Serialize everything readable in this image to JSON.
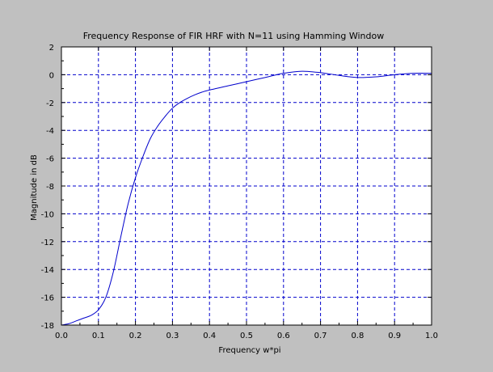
{
  "chart_data": {
    "type": "line",
    "title": "Frequency Response of FIR HRF with N=11 using Hamming Window",
    "xlabel": "Frequency w*pi",
    "ylabel": "Magnitude in dB",
    "xlim": [
      0.0,
      1.0
    ],
    "ylim": [
      -18,
      2
    ],
    "xticks": [
      0.0,
      0.1,
      0.2,
      0.3,
      0.4,
      0.5,
      0.6,
      0.7,
      0.8,
      0.9,
      1.0
    ],
    "xtick_labels": [
      "0.0",
      "0.1",
      "0.2",
      "0.3",
      "0.4",
      "0.5",
      "0.6",
      "0.7",
      "0.8",
      "0.9",
      "1.0"
    ],
    "yticks": [
      2,
      0,
      -2,
      -4,
      -6,
      -8,
      -10,
      -12,
      -14,
      -16,
      -18
    ],
    "ytick_labels": [
      "2",
      "0",
      "-2",
      "-4",
      "-6",
      "-8",
      "-10",
      "-12",
      "-14",
      "-16",
      "-18"
    ],
    "grid": true,
    "colors": {
      "background": "#c0c0c0",
      "plot_area": "#ffffff",
      "line": "#0000cc",
      "grid": "#0000cc",
      "axes": "#000000"
    },
    "series": [
      {
        "x": [
          0.0,
          0.02,
          0.04,
          0.06,
          0.08,
          0.1,
          0.12,
          0.14,
          0.16,
          0.18,
          0.2,
          0.22,
          0.24,
          0.26,
          0.28,
          0.3,
          0.32,
          0.34,
          0.36,
          0.38,
          0.4,
          0.45,
          0.5,
          0.55,
          0.6,
          0.65,
          0.7,
          0.75,
          0.8,
          0.85,
          0.9,
          0.95,
          1.0
        ],
        "y": [
          -18.0,
          -17.9,
          -17.7,
          -17.5,
          -17.3,
          -16.9,
          -16.0,
          -14.2,
          -11.7,
          -9.3,
          -7.4,
          -5.9,
          -4.6,
          -3.7,
          -3.0,
          -2.4,
          -2.0,
          -1.7,
          -1.45,
          -1.25,
          -1.1,
          -0.8,
          -0.5,
          -0.2,
          0.1,
          0.25,
          0.15,
          -0.05,
          -0.2,
          -0.15,
          0.0,
          0.1,
          0.1
        ]
      }
    ]
  }
}
